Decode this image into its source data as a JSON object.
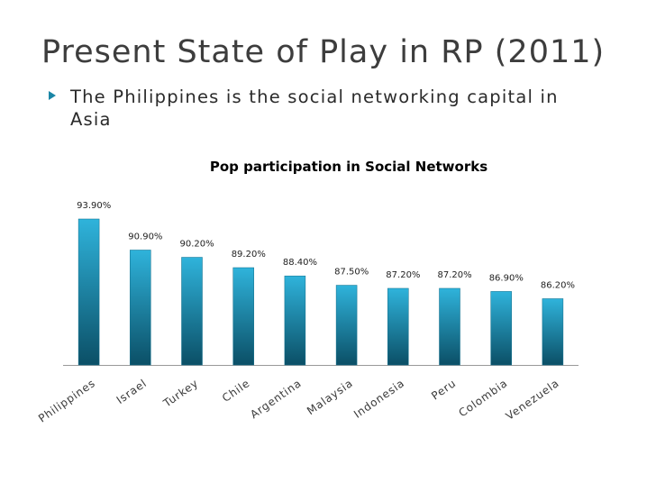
{
  "slide": {
    "title": "Present State of Play in RP (2011)",
    "bullet": "The Philippines is the social networking capital in Asia"
  },
  "colors": {
    "accent": "#1a86a6",
    "bar_top": "#2fb3db",
    "bar_bottom": "#0b4f66"
  },
  "chart_data": {
    "type": "bar",
    "title": "Pop participation in Social Networks",
    "xlabel": "",
    "ylabel": "",
    "categories": [
      "Philippines",
      "Israel",
      "Turkey",
      "Chile",
      "Argentina",
      "Malaysia",
      "Indonesia",
      "Peru",
      "Colombia",
      "Venezuela"
    ],
    "values": [
      93.9,
      90.9,
      90.2,
      89.2,
      88.4,
      87.5,
      87.2,
      87.2,
      86.9,
      86.2
    ],
    "labels": [
      "93.90%",
      "90.90%",
      "90.20%",
      "89.20%",
      "88.40%",
      "87.50%",
      "87.20%",
      "87.20%",
      "86.90%",
      "86.20%"
    ],
    "ylim": [
      79.8,
      93.9
    ],
    "grid": false,
    "legend": "none"
  }
}
